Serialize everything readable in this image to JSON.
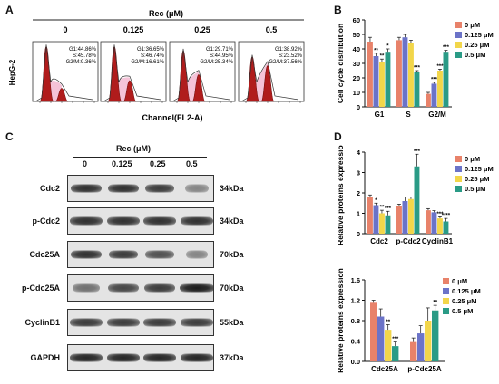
{
  "panels": {
    "a": "A",
    "b": "B",
    "c": "C",
    "d": "D"
  },
  "panel_a": {
    "rec_label": "Rec (μM)",
    "doses": [
      "0",
      "0.125",
      "0.25",
      "0.5"
    ],
    "row_label": "HepG-2",
    "xlabel": "Channel(FL2-A)",
    "stats": [
      {
        "g1": "G1:44.86%",
        "s": "S:45.78%",
        "g2m": "G2/M:9.36%"
      },
      {
        "g1": "G1:36.65%",
        "s": "S:46.74%",
        "g2m": "G2/M:16.61%"
      },
      {
        "g1": "G1:29.71%",
        "s": "S:44.95%",
        "g2m": "G2/M:25.34%"
      },
      {
        "g1": "G1:38.92%",
        "s": "S:23.52%",
        "g2m": "G2/M:37.56%"
      }
    ]
  },
  "panel_c": {
    "rec_label": "Rec (μM)",
    "doses": [
      "0",
      "0.125",
      "0.25",
      "0.5"
    ],
    "proteins": [
      {
        "name": "Cdc2",
        "kda": "34kDa",
        "intensity": [
          0.85,
          0.85,
          0.8,
          0.45
        ],
        "width": [
          0.85,
          0.85,
          0.8,
          0.65
        ]
      },
      {
        "name": "p-Cdc2",
        "kda": "34kDa",
        "intensity": [
          0.85,
          0.85,
          0.85,
          0.85
        ],
        "width": [
          0.9,
          0.9,
          0.9,
          0.9
        ]
      },
      {
        "name": "Cdc25A",
        "kda": "70kDa",
        "intensity": [
          0.85,
          0.8,
          0.7,
          0.45
        ],
        "width": [
          0.85,
          0.8,
          0.8,
          0.6
        ]
      },
      {
        "name": "p-Cdc25A",
        "kda": "70kDa",
        "intensity": [
          0.55,
          0.75,
          0.8,
          0.95
        ],
        "width": [
          0.75,
          0.85,
          0.85,
          0.95
        ]
      },
      {
        "name": "CyclinB1",
        "kda": "55kDa",
        "intensity": [
          0.8,
          0.8,
          0.8,
          0.8
        ],
        "width": [
          0.9,
          0.9,
          0.9,
          0.9
        ]
      },
      {
        "name": "GAPDH",
        "kda": "37kDa",
        "intensity": [
          0.9,
          0.9,
          0.9,
          0.9
        ],
        "width": [
          0.9,
          0.9,
          0.9,
          0.9
        ]
      }
    ]
  },
  "colors": [
    "#e8826a",
    "#6b73c8",
    "#f2d64a",
    "#2a9b86"
  ],
  "chart_data": [
    {
      "type": "bar",
      "title": "",
      "xlabel": "",
      "ylabel": "Cell cycle distribution",
      "categories": [
        "G1",
        "S",
        "G2/M"
      ],
      "ylim": [
        0,
        60
      ],
      "yticks": [
        0,
        10,
        20,
        30,
        40,
        50,
        60
      ],
      "legend_position": "right",
      "series": [
        {
          "name": "0 μM",
          "values": [
            45,
            46,
            9
          ],
          "err": [
            3,
            2,
            1
          ],
          "sig": [
            "",
            "",
            ""
          ]
        },
        {
          "name": "0.125 μM",
          "values": [
            35,
            48,
            16
          ],
          "err": [
            2,
            2,
            1
          ],
          "sig": [
            "**",
            "",
            "***"
          ]
        },
        {
          "name": "0.25 μM",
          "values": [
            31,
            44,
            25
          ],
          "err": [
            2,
            2,
            1
          ],
          "sig": [
            "**",
            "",
            "***"
          ]
        },
        {
          "name": "0.5 μM",
          "values": [
            38,
            24,
            38
          ],
          "err": [
            2,
            1,
            1
          ],
          "sig": [
            "*",
            "***",
            "***"
          ]
        }
      ]
    },
    {
      "type": "bar",
      "title": "",
      "xlabel": "",
      "ylabel": "Relative proteins expression",
      "categories": [
        "Cdc2",
        "p-Cdc2",
        "CyclinB1"
      ],
      "ylim": [
        0,
        4
      ],
      "yticks": [
        0,
        1,
        2,
        3,
        4
      ],
      "legend_position": "top-right",
      "series": [
        {
          "name": "0 μM",
          "values": [
            1.8,
            1.35,
            1.15
          ],
          "err": [
            0.1,
            0.1,
            0.08
          ],
          "sig": [
            "",
            "",
            ""
          ]
        },
        {
          "name": "0.125 μM",
          "values": [
            1.4,
            1.6,
            1.05
          ],
          "err": [
            0.1,
            0.2,
            0.08
          ],
          "sig": [
            "*",
            "",
            ""
          ]
        },
        {
          "name": "0.25 μM",
          "values": [
            1.0,
            1.7,
            0.75
          ],
          "err": [
            0.15,
            0.1,
            0.08
          ],
          "sig": [
            "**",
            "",
            "***"
          ]
        },
        {
          "name": "0.5 μM",
          "values": [
            0.9,
            3.3,
            0.6
          ],
          "err": [
            0.2,
            0.6,
            0.15
          ],
          "sig": [
            "***",
            "***",
            "****"
          ]
        }
      ]
    },
    {
      "type": "bar",
      "title": "",
      "xlabel": "",
      "ylabel": "Relative proteins expression",
      "categories": [
        "Cdc25A",
        "p-Cdc25A"
      ],
      "ylim": [
        0,
        1.6
      ],
      "yticks": [
        0.0,
        0.4,
        0.8,
        1.2,
        1.6
      ],
      "legend_position": "top-right",
      "series": [
        {
          "name": "0 μM",
          "values": [
            1.15,
            0.38
          ],
          "err": [
            0.05,
            0.08
          ],
          "sig": [
            "",
            ""
          ]
        },
        {
          "name": "0.125 μM",
          "values": [
            0.88,
            0.55
          ],
          "err": [
            0.15,
            0.15
          ],
          "sig": [
            "",
            ""
          ]
        },
        {
          "name": "0.25 μM",
          "values": [
            0.62,
            0.8
          ],
          "err": [
            0.1,
            0.25
          ],
          "sig": [
            "**",
            ""
          ]
        },
        {
          "name": "0.5 μM",
          "values": [
            0.3,
            1.0
          ],
          "err": [
            0.08,
            0.1
          ],
          "sig": [
            "***",
            "**"
          ]
        }
      ]
    }
  ]
}
